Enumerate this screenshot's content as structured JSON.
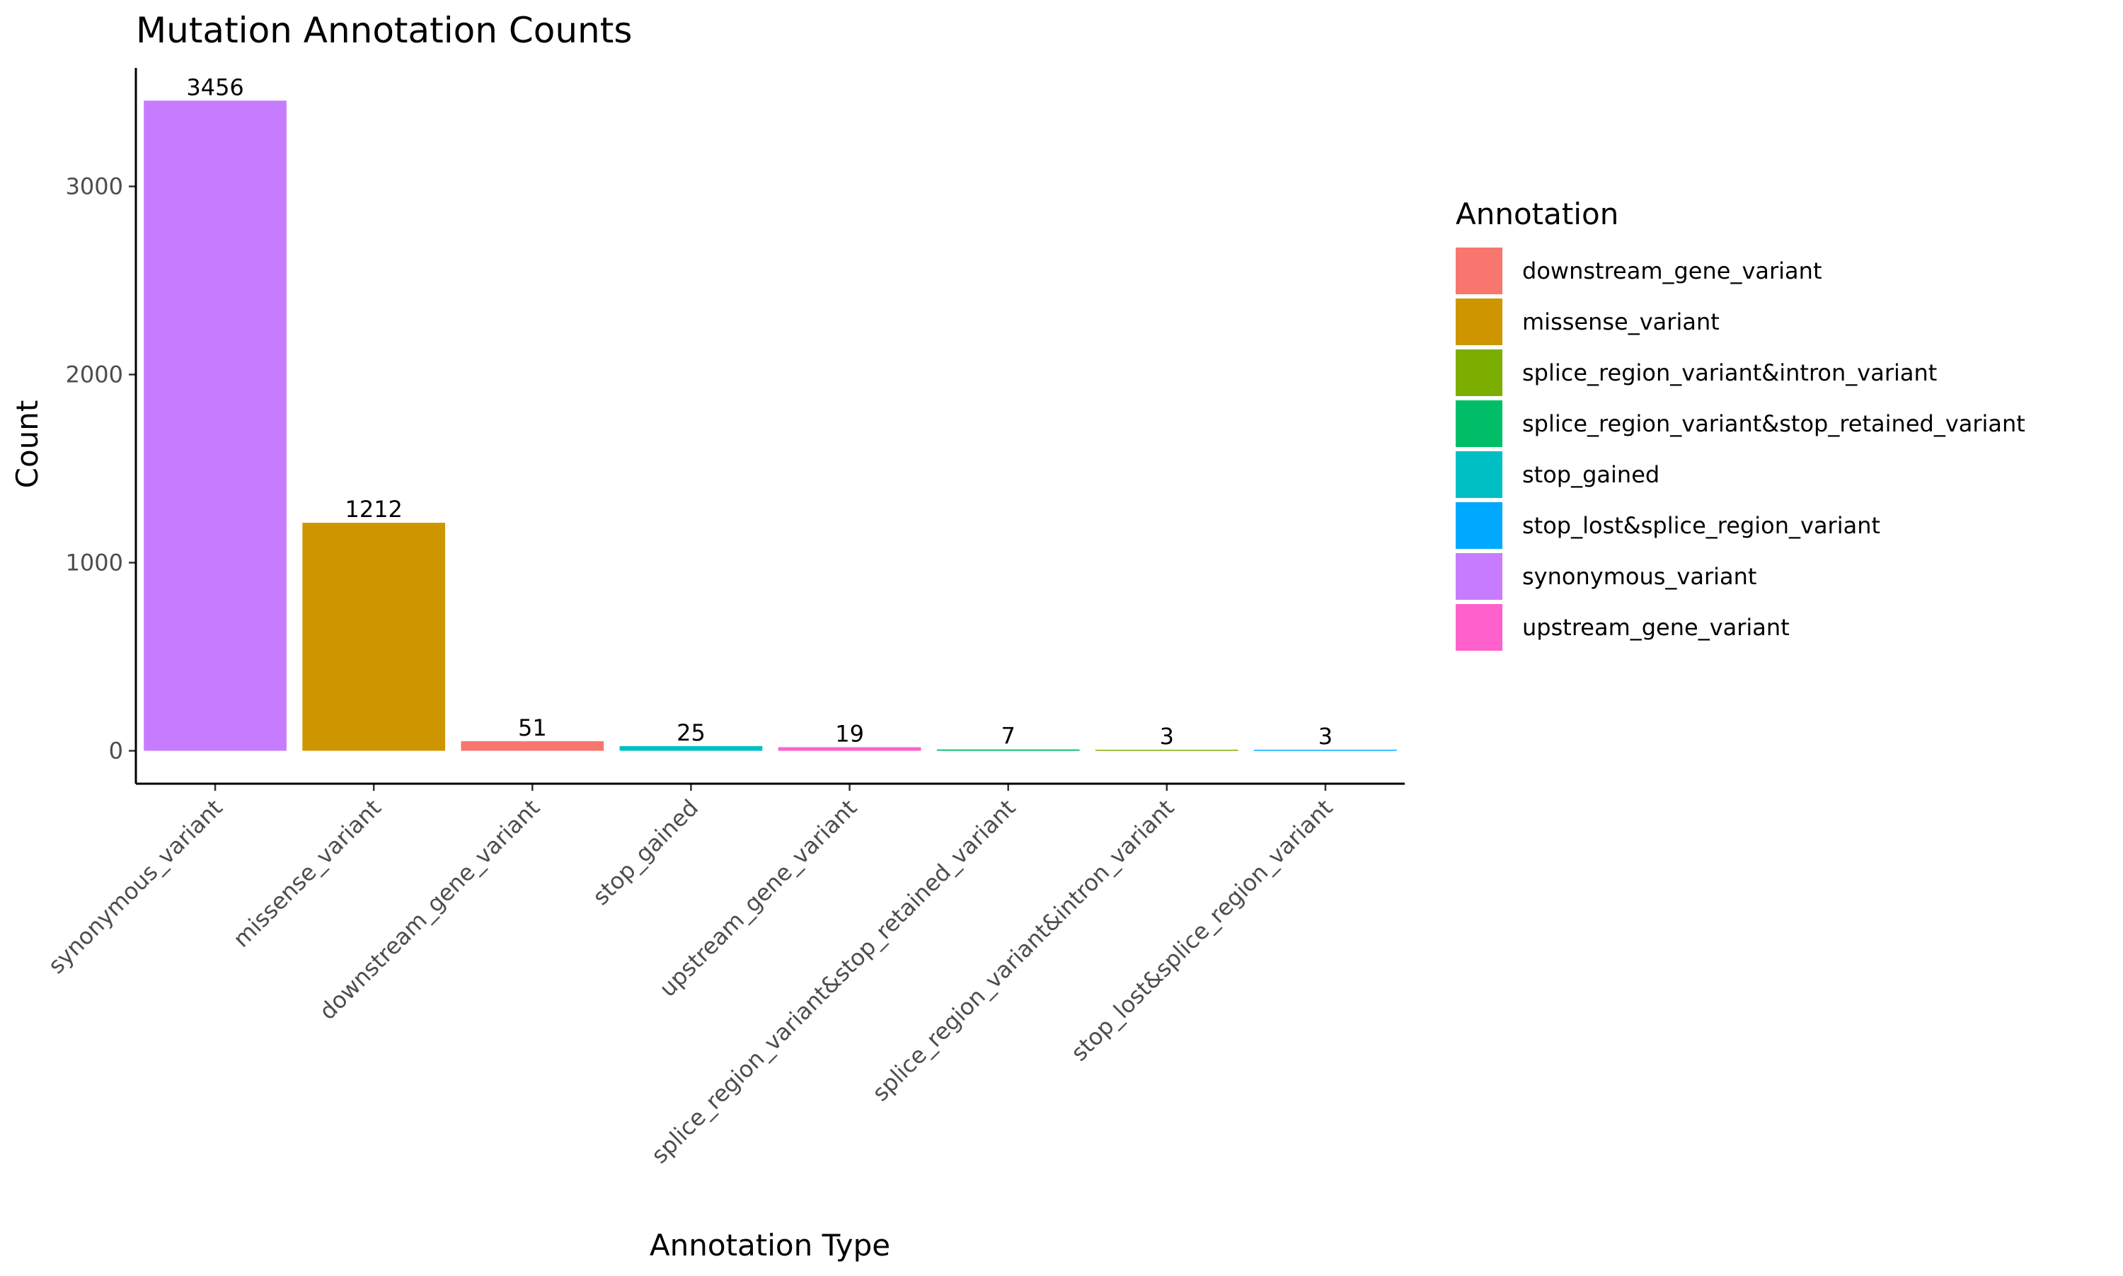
{
  "chart_data": {
    "type": "bar",
    "title": "Mutation Annotation Counts",
    "xlabel": "Annotation Type",
    "ylabel": "Count",
    "ylim": [
      -175,
      3630
    ],
    "yticks": [
      0,
      1000,
      2000,
      3000
    ],
    "grid": false,
    "legend_position": "right",
    "categories": [
      "synonymous_variant",
      "missense_variant",
      "downstream_gene_variant",
      "stop_gained",
      "upstream_gene_variant",
      "splice_region_variant&stop_retained_variant",
      "splice_region_variant&intron_variant",
      "stop_lost&splice_region_variant"
    ],
    "values": [
      3456,
      1212,
      51,
      25,
      19,
      7,
      3,
      3
    ],
    "bar_colors": [
      "#C77CFF",
      "#CD9600",
      "#F8766D",
      "#00BFC4",
      "#FF61CC",
      "#00BE67",
      "#7CAE00",
      "#00A9FF"
    ],
    "legend": {
      "title": "Annotation",
      "entries": [
        {
          "label": "downstream_gene_variant",
          "color": "#F8766D"
        },
        {
          "label": "missense_variant",
          "color": "#CD9600"
        },
        {
          "label": "splice_region_variant&intron_variant",
          "color": "#7CAE00"
        },
        {
          "label": "splice_region_variant&stop_retained_variant",
          "color": "#00BE67"
        },
        {
          "label": "stop_gained",
          "color": "#00BFC4"
        },
        {
          "label": "stop_lost&splice_region_variant",
          "color": "#00A9FF"
        },
        {
          "label": "synonymous_variant",
          "color": "#C77CFF"
        },
        {
          "label": "upstream_gene_variant",
          "color": "#FF61CC"
        }
      ]
    }
  }
}
